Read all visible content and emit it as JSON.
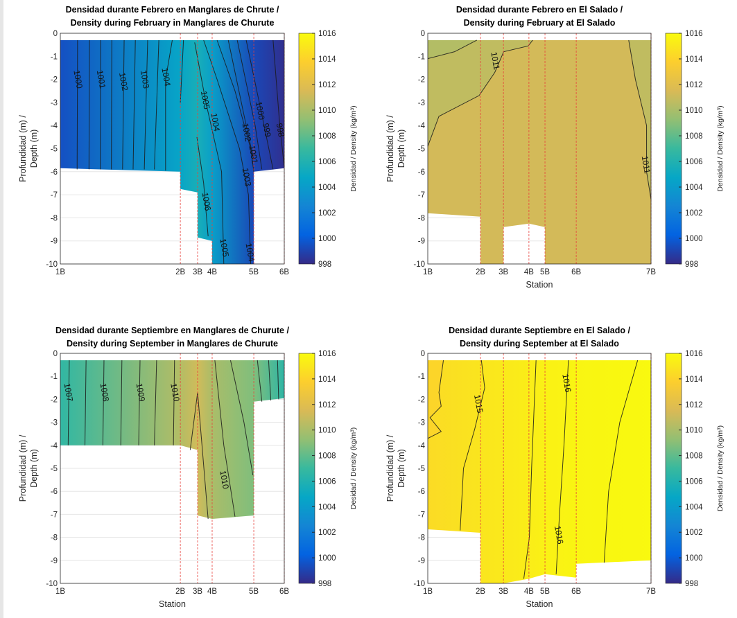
{
  "chart_data": [
    {
      "type": "contour",
      "title": [
        "Densidad durante Febrero en Manglares de Chrute /",
        "Density during February in Manglares de Churute"
      ],
      "xlabel": "",
      "ylabel": [
        "Profundidad (m) /",
        "Depth (m)"
      ],
      "colorbar_label": "Densidad / Density (kg/m³)",
      "ylim": [
        -10,
        0
      ],
      "yticks": [
        0,
        -1,
        -2,
        -3,
        -4,
        -5,
        -6,
        -7,
        -8,
        -9,
        -10
      ],
      "clim": [
        998,
        1016
      ],
      "cticks": [
        998,
        1000,
        1002,
        1004,
        1006,
        1008,
        1010,
        1012,
        1014,
        1016
      ],
      "stations": [
        "1B",
        "2B",
        "3B",
        "4B",
        "5B",
        "6B"
      ],
      "station_x": [
        0,
        0.536,
        0.613,
        0.678,
        0.864,
        1
      ],
      "surface_density": [
        999.5,
        1004.6,
        1005.6,
        1004.2,
        999.2,
        998.2
      ],
      "bottom": [
        [
          0,
          -5.85
        ],
        [
          0.536,
          -6.0
        ],
        [
          0.536,
          -6.75
        ],
        [
          0.613,
          -6.9
        ],
        [
          0.613,
          -8.85
        ],
        [
          0.678,
          -9.0
        ],
        [
          0.678,
          -10
        ],
        [
          0.864,
          -10
        ],
        [
          0.864,
          -6.0
        ],
        [
          1,
          -5.85
        ]
      ],
      "patches": [],
      "contours": [
        [
          [
            0.077,
            -0.3
          ],
          [
            0.075,
            -5.9
          ]
        ],
        [
          [
            0.13,
            -0.3
          ],
          [
            0.128,
            -5.9
          ]
        ],
        [
          [
            0.18,
            -0.3
          ],
          [
            0.178,
            -5.9
          ]
        ],
        [
          [
            0.23,
            -0.3
          ],
          [
            0.228,
            -5.9
          ]
        ],
        [
          [
            0.285,
            -0.3
          ],
          [
            0.278,
            -5.9
          ]
        ],
        [
          [
            0.335,
            -0.3
          ],
          [
            0.325,
            -5.9
          ]
        ],
        [
          [
            0.39,
            -0.3
          ],
          [
            0.375,
            -5.9
          ]
        ],
        [
          [
            0.44,
            -0.3
          ],
          [
            0.42,
            -5.9
          ]
        ],
        [
          [
            0.5,
            -0.3
          ],
          [
            0.47,
            -2
          ],
          [
            0.47,
            -5.95
          ]
        ],
        [
          [
            0.55,
            -0.3
          ],
          [
            0.536,
            -3
          ]
        ],
        [
          [
            0.6,
            -0.4
          ],
          [
            0.65,
            -3
          ],
          [
            0.72,
            -6
          ],
          [
            0.73,
            -10
          ]
        ],
        [
          [
            0.64,
            -0.3
          ],
          [
            0.7,
            -2
          ],
          [
            0.8,
            -5
          ],
          [
            0.84,
            -7
          ],
          [
            0.85,
            -10
          ]
        ],
        [
          [
            0.7,
            -0.3
          ],
          [
            0.78,
            -2.5
          ],
          [
            0.85,
            -5
          ],
          [
            0.864,
            -6
          ]
        ],
        [
          [
            0.61,
            -4.5
          ],
          [
            0.64,
            -6.5
          ],
          [
            0.66,
            -8.8
          ]
        ],
        [
          [
            0.75,
            -0.3
          ],
          [
            0.83,
            -4
          ],
          [
            0.864,
            -5.5
          ]
        ],
        [
          [
            0.79,
            -0.3
          ],
          [
            0.87,
            -4
          ],
          [
            0.9,
            -5.9
          ]
        ],
        [
          [
            0.83,
            -0.3
          ],
          [
            0.91,
            -4
          ],
          [
            0.95,
            -5.9
          ]
        ],
        [
          [
            0.95,
            -0.3
          ],
          [
            0.98,
            -4
          ],
          [
            1,
            -5.8
          ]
        ]
      ],
      "labels": [
        {
          "text": "1000",
          "x": 0.077,
          "y": -2
        },
        {
          "text": "1001",
          "x": 0.18,
          "y": -2
        },
        {
          "text": "1002",
          "x": 0.28,
          "y": -2.1
        },
        {
          "text": "1003",
          "x": 0.375,
          "y": -2
        },
        {
          "text": "1004",
          "x": 0.47,
          "y": -1.9
        },
        {
          "text": "1005",
          "x": 0.645,
          "y": -2.9
        },
        {
          "text": "1004",
          "x": 0.69,
          "y": -3.5
        },
        {
          "text": "1002",
          "x": 0.83,
          "y": -4.3
        },
        {
          "text": "1001",
          "x": 0.86,
          "y": -4.3
        },
        {
          "text": "1000",
          "x": 0.89,
          "y": -4.2
        },
        {
          "text": "999",
          "x": 0.92,
          "y": -4.2
        },
        {
          "text": "998",
          "x": 0.98,
          "y": -4.2
        },
        {
          "text": "1003",
          "x": 0.83,
          "y": -6
        },
        {
          "text": "1006",
          "x": 0.65,
          "y": -7.3
        },
        {
          "text": "1005",
          "x": 0.73,
          "y": -9.3
        },
        {
          "text": "1004",
          "x": 0.845,
          "y": -9.5
        }
      ]
    },
    {
      "type": "contour",
      "title": [
        "Densidad durante Febrero en El Salado /",
        "Density during February at El Salado"
      ],
      "xlabel": "Station",
      "ylabel": [
        "Profundidad (m) /",
        "Depth (m)"
      ],
      "colorbar_label": "Densidad / Density (kg/m³)",
      "ylim": [
        -10,
        0
      ],
      "yticks": [
        0,
        -1,
        -2,
        -3,
        -4,
        -5,
        -6,
        -7,
        -8,
        -9,
        -10
      ],
      "clim": [
        998,
        1016
      ],
      "cticks": [
        998,
        1000,
        1002,
        1004,
        1006,
        1008,
        1010,
        1012,
        1014,
        1016
      ],
      "stations": [
        "1B",
        "2B",
        "3B",
        "4B",
        "5B",
        "6B",
        "7B"
      ],
      "station_x": [
        0,
        0.236,
        0.339,
        0.453,
        0.525,
        0.665,
        1
      ],
      "surface_density": [
        1011.3,
        1011.3,
        1011.3,
        1011.3,
        1011.3,
        1011.3,
        1011.3
      ],
      "bottom": [
        [
          0,
          -7.8
        ],
        [
          0.236,
          -7.95
        ],
        [
          0.236,
          -10
        ],
        [
          0.339,
          -10
        ],
        [
          0.339,
          -8.4
        ],
        [
          0.453,
          -8.25
        ],
        [
          0.525,
          -8.4
        ],
        [
          0.525,
          -10
        ],
        [
          1,
          -10
        ]
      ],
      "patches": [
        {
          "value": 1010.3,
          "points": [
            [
              0,
              -0.3
            ],
            [
              0.22,
              -0.3
            ],
            [
              0.12,
              -0.8
            ],
            [
              0,
              -1.1
            ]
          ]
        },
        {
          "value": 1010.7,
          "points": [
            [
              0,
              -1.1
            ],
            [
              0.12,
              -0.8
            ],
            [
              0.22,
              -0.3
            ],
            [
              0.47,
              -0.3
            ],
            [
              0.45,
              -0.55
            ],
            [
              0.34,
              -0.8
            ],
            [
              0.3,
              -1.7
            ],
            [
              0.23,
              -2.7
            ],
            [
              0.05,
              -3.6
            ],
            [
              0,
              -4.9
            ]
          ]
        },
        {
          "value": 1010.7,
          "points": [
            [
              0.9,
              -0.3
            ],
            [
              1,
              -0.3
            ],
            [
              1,
              -7.2
            ],
            [
              0.98,
              -6
            ],
            [
              0.98,
              -4
            ],
            [
              0.93,
              -2
            ]
          ]
        }
      ],
      "contours": [
        [
          [
            0,
            -1.1
          ],
          [
            0.12,
            -0.8
          ],
          [
            0.22,
            -0.3
          ]
        ],
        [
          [
            0,
            -4.9
          ],
          [
            0.05,
            -3.6
          ],
          [
            0.23,
            -2.7
          ],
          [
            0.3,
            -1.7
          ],
          [
            0.34,
            -0.8
          ],
          [
            0.45,
            -0.55
          ],
          [
            0.47,
            -0.3
          ]
        ],
        [
          [
            0.9,
            -0.3
          ],
          [
            0.93,
            -2
          ],
          [
            0.98,
            -4
          ],
          [
            0.98,
            -6
          ],
          [
            1,
            -7.2
          ]
        ]
      ],
      "labels": [
        {
          "text": "1011",
          "x": 0.3,
          "y": -1.2
        },
        {
          "text": "1011",
          "x": 0.975,
          "y": -5.7
        }
      ]
    },
    {
      "type": "contour",
      "title": [
        "Densidad durante Septiembre en Manglares de Churute /",
        "Density during September in Manglares de Churute"
      ],
      "xlabel": "Station",
      "ylabel": [
        "Profundidad (m) /",
        "Depth (m)"
      ],
      "colorbar_label": "Desidad / Density (kg/m³)",
      "ylim": [
        -10,
        0
      ],
      "yticks": [
        0,
        -1,
        -2,
        -3,
        -4,
        -5,
        -6,
        -7,
        -8,
        -9,
        -10
      ],
      "clim": [
        998,
        1016
      ],
      "cticks": [
        998,
        1000,
        1002,
        1004,
        1006,
        1008,
        1010,
        1012,
        1014,
        1016
      ],
      "stations": [
        "1B",
        "2B",
        "3B",
        "4B",
        "5B",
        "6B"
      ],
      "station_x": [
        0,
        0.536,
        0.613,
        0.678,
        0.864,
        1
      ],
      "surface_density": [
        1006.7,
        1010.3,
        1011.2,
        1010.0,
        1008.8,
        1006.6
      ],
      "bottom": [
        [
          0,
          -4.0
        ],
        [
          0.536,
          -4.0
        ],
        [
          0.613,
          -4.2
        ],
        [
          0.613,
          -7.05
        ],
        [
          0.678,
          -7.2
        ],
        [
          0.864,
          -7.05
        ],
        [
          0.864,
          -2.1
        ],
        [
          1,
          -1.95
        ]
      ],
      "patches": [],
      "contours": [
        [
          [
            0.04,
            -0.3
          ],
          [
            0.035,
            -4
          ]
        ],
        [
          [
            0.115,
            -0.3
          ],
          [
            0.11,
            -4
          ]
        ],
        [
          [
            0.195,
            -0.3
          ],
          [
            0.19,
            -4
          ]
        ],
        [
          [
            0.275,
            -0.3
          ],
          [
            0.27,
            -4
          ]
        ],
        [
          [
            0.356,
            -0.3
          ],
          [
            0.35,
            -4
          ]
        ],
        [
          [
            0.43,
            -0.3
          ],
          [
            0.42,
            -4
          ]
        ],
        [
          [
            0.51,
            -0.3
          ],
          [
            0.505,
            -4
          ]
        ],
        [
          [
            0.58,
            -4.2
          ],
          [
            0.613,
            -1.7
          ],
          [
            0.66,
            -7.2
          ]
        ],
        [
          [
            0.69,
            -0.3
          ],
          [
            0.73,
            -4
          ],
          [
            0.78,
            -7.1
          ]
        ],
        [
          [
            0.76,
            -0.3
          ],
          [
            0.82,
            -3
          ],
          [
            0.86,
            -5.3
          ]
        ],
        [
          [
            0.88,
            -0.3
          ],
          [
            0.9,
            -2.1
          ]
        ],
        [
          [
            0.93,
            -0.3
          ],
          [
            0.94,
            -2.05
          ]
        ],
        [
          [
            0.97,
            -0.3
          ],
          [
            0.975,
            -2
          ]
        ]
      ],
      "labels": [
        {
          "text": "1007",
          "x": 0.034,
          "y": -1.7
        },
        {
          "text": "1008",
          "x": 0.195,
          "y": -1.7
        },
        {
          "text": "1009",
          "x": 0.356,
          "y": -1.7
        },
        {
          "text": "1010",
          "x": 0.51,
          "y": -1.7
        },
        {
          "text": "1010",
          "x": 0.73,
          "y": -5.5
        }
      ]
    },
    {
      "type": "contour",
      "title": [
        "Densidad durante Septiembre en El Salado /",
        "Density during September at El Salado"
      ],
      "xlabel": "Station",
      "ylabel": [
        "Profundidad (m) /",
        "Depth (m)"
      ],
      "colorbar_label": "Densidad / Density (kg/m³)",
      "ylim": [
        -10,
        0
      ],
      "yticks": [
        0,
        -1,
        -2,
        -3,
        -4,
        -5,
        -6,
        -7,
        -8,
        -9,
        -10
      ],
      "clim": [
        998,
        1016
      ],
      "cticks": [
        998,
        1000,
        1002,
        1004,
        1006,
        1008,
        1010,
        1012,
        1014,
        1016
      ],
      "stations": [
        "1B",
        "2B",
        "3B",
        "4B",
        "5B",
        "6B",
        "7B"
      ],
      "station_x": [
        0,
        0.236,
        0.339,
        0.453,
        0.525,
        0.665,
        1
      ],
      "surface_density": [
        1014.4,
        1014.9,
        1015.1,
        1015.3,
        1015.5,
        1015.7,
        1015.9
      ],
      "bottom": [
        [
          0,
          -7.65
        ],
        [
          0.236,
          -7.8
        ],
        [
          0.236,
          -10
        ],
        [
          0.339,
          -10
        ],
        [
          0.453,
          -9.8
        ],
        [
          0.525,
          -9.6
        ],
        [
          0.665,
          -9.75
        ],
        [
          0.665,
          -9.15
        ],
        [
          1,
          -9.0
        ]
      ],
      "patches": [
        {
          "value": 1014.1,
          "points": [
            [
              0,
              -0.3
            ],
            [
              0.07,
              -0.3
            ],
            [
              0.05,
              -1.7
            ],
            [
              0.06,
              -2.3
            ],
            [
              0.01,
              -2.8
            ],
            [
              0.06,
              -3.4
            ],
            [
              0,
              -3.7
            ]
          ]
        }
      ],
      "contours": [
        [
          [
            0.07,
            -0.3
          ],
          [
            0.05,
            -1.7
          ],
          [
            0.06,
            -2.3
          ],
          [
            0.01,
            -2.8
          ],
          [
            0.06,
            -3.4
          ],
          [
            0,
            -3.7
          ]
        ],
        [
          [
            0.24,
            -0.3
          ],
          [
            0.255,
            -1.5
          ],
          [
            0.21,
            -3.3
          ],
          [
            0.16,
            -5
          ],
          [
            0.145,
            -7.7
          ]
        ],
        [
          [
            0.485,
            -0.3
          ],
          [
            0.465,
            -5
          ],
          [
            0.455,
            -8
          ],
          [
            0.43,
            -9.8
          ]
        ],
        [
          [
            0.63,
            -0.3
          ],
          [
            0.61,
            -4
          ],
          [
            0.59,
            -7
          ],
          [
            0.575,
            -9.6
          ]
        ],
        [
          [
            0.94,
            -0.3
          ],
          [
            0.86,
            -3
          ],
          [
            0.81,
            -6
          ],
          [
            0.79,
            -9.1
          ]
        ]
      ],
      "labels": [
        {
          "text": "1015",
          "x": 0.225,
          "y": -2.2
        },
        {
          "text": "1016",
          "x": 0.62,
          "y": -1.3
        },
        {
          "text": "1016",
          "x": 0.585,
          "y": -7.9
        }
      ]
    }
  ],
  "colors": {
    "station_line": "#e8413c",
    "contour": "#1a1a1a",
    "grid": "#e6e6e6"
  }
}
